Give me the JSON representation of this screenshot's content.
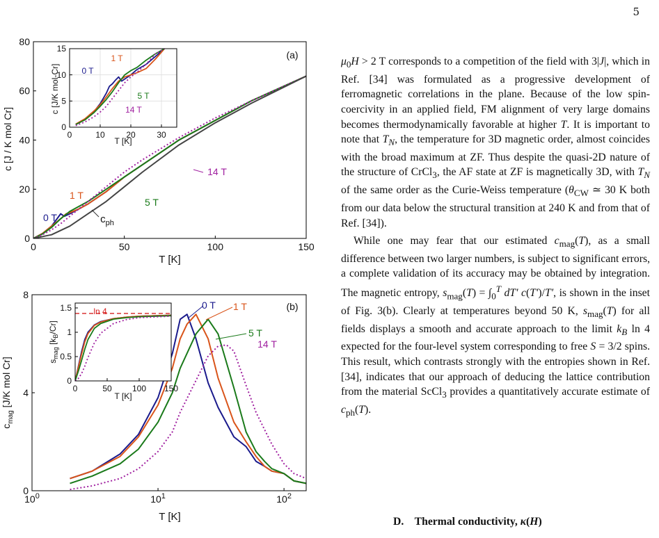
{
  "page_number": "5",
  "body_text": {
    "para1": "μ0H > 2 T corresponds to a competition of the field with 3|J|, which in Ref. [34] was formulated as a progressive development of ferromagnetic correlations in the plane. Because of the low spin-coercivity in an applied field, FM alignment of very large domains becomes thermodynamically favorable at higher T. It is important to note that TN, the temperature for 3D magnetic order, almost coincides with the broad maximum at ZF. Thus despite the quasi-2D nature of the structure of CrCl3, the AF state at ZF is magnetically 3D, with TN of the same order as the Curie-Weiss temperature (θCW ≃ 30 K both from our data below the structural transition at 240 K and from that of Ref. [34]).",
    "para2": "While one may fear that our estimated cmag(T), as a small difference between two larger numbers, is subject to significant errors, a complete validation of its accuracy may be obtained by integration. The magnetic entropy, smag(T) = ∫0T dT′ c(T′)/T′, is shown in the inset of Fig. 3(b). Clearly at temperatures beyond 50 K, smag(T) for all fields displays a smooth and accurate approach to the limit kB ln 4 expected for the four-level system corresponding to free S = 3/2 spins. This result, which contrasts strongly with the entropies shown in Ref. [34], indicates that our approach of deducing the lattice contribution from the material ScCl3 provides a quantitatively accurate estimate of cph(T)."
  },
  "section_heading": "D.   Thermal conductivity, κ(H)",
  "colors": {
    "0T": "#1a1a8c",
    "1T": "#d9541a",
    "5T": "#1a7a1a",
    "14T": "#a020a0",
    "ph": "#444444",
    "ln4": "#d62020"
  },
  "chart_data": [
    {
      "id": "a",
      "panel_label": "(a)",
      "type": "line",
      "xlabel": "T [K]",
      "ylabel": "c [J / K mol Cr]",
      "xlim": [
        0,
        150
      ],
      "ylim": [
        0,
        80
      ],
      "xticks": [
        "0",
        "50",
        "100",
        "150"
      ],
      "yticks": [
        "0",
        "20",
        "40",
        "60",
        "80"
      ],
      "grid": false,
      "series": [
        {
          "name": "0 T",
          "x": [
            0,
            5,
            10,
            13,
            15,
            17,
            20,
            25,
            30,
            40,
            50,
            60,
            80,
            100,
            120,
            150
          ],
          "y": [
            0,
            2,
            5,
            8,
            10,
            9,
            10,
            12,
            14,
            19,
            25,
            30,
            40,
            48,
            56,
            66
          ]
        },
        {
          "name": "1 T",
          "x": [
            0,
            5,
            10,
            15,
            18,
            20,
            25,
            30,
            40,
            50,
            60,
            80,
            100,
            120,
            150
          ],
          "y": [
            0,
            2,
            5,
            8,
            10,
            10.5,
            12,
            14,
            19,
            25,
            30,
            40,
            48,
            56,
            66
          ]
        },
        {
          "name": "5 T",
          "x": [
            0,
            5,
            10,
            15,
            20,
            25,
            30,
            40,
            50,
            60,
            80,
            100,
            120,
            150
          ],
          "y": [
            0,
            1.8,
            4.5,
            8,
            11,
            13,
            15,
            20,
            25,
            30,
            40,
            48,
            56,
            66
          ]
        },
        {
          "name": "14 T",
          "x": [
            0,
            5,
            10,
            15,
            20,
            25,
            30,
            40,
            50,
            60,
            80,
            100,
            120,
            150
          ],
          "y": [
            0,
            1.5,
            3.5,
            6,
            9,
            12,
            15,
            21,
            27,
            32,
            41,
            49,
            56,
            66
          ]
        },
        {
          "name": "c_ph",
          "x": [
            0,
            10,
            20,
            30,
            40,
            50,
            60,
            80,
            100,
            120,
            150
          ],
          "y": [
            0,
            1.5,
            5,
            10,
            15,
            21,
            27,
            38,
            47,
            55,
            66
          ]
        }
      ],
      "labels": {
        "0T": "0 T",
        "1T": "1 T",
        "5T": "5 T",
        "14T": "14 T",
        "ph": "c",
        "ph_sub": "ph"
      }
    },
    {
      "id": "a_inset",
      "type": "line",
      "xlabel": "T [K]",
      "ylabel": "c [J/K mol-Cr]",
      "xlim": [
        0,
        35
      ],
      "ylim": [
        0,
        15
      ],
      "xticks": [
        "0",
        "10",
        "20",
        "30"
      ],
      "yticks": [
        "0",
        "5",
        "10",
        "15"
      ],
      "grid": true,
      "series": [
        {
          "name": "0 T",
          "x": [
            2,
            5,
            8,
            10,
            12,
            13,
            14,
            15,
            16,
            17,
            18,
            20,
            22,
            25,
            28,
            31
          ],
          "y": [
            0.5,
            1.5,
            3,
            4.5,
            6.5,
            7.8,
            8.3,
            9,
            9.6,
            8.8,
            9.2,
            10,
            11,
            12,
            13.5,
            15
          ]
        },
        {
          "name": "1 T",
          "x": [
            2,
            5,
            8,
            10,
            12,
            14,
            16,
            18,
            20,
            22,
            25,
            28,
            31
          ],
          "y": [
            0.6,
            1.6,
            3.1,
            4.3,
            5.8,
            7.4,
            8.8,
            9.6,
            10,
            10.4,
            11.2,
            13,
            15
          ]
        },
        {
          "name": "5 T",
          "x": [
            2,
            5,
            8,
            10,
            12,
            14,
            16,
            18,
            20,
            22,
            25,
            28,
            31
          ],
          "y": [
            0.5,
            1.4,
            2.8,
            4,
            5.3,
            6.8,
            8.5,
            10,
            10.8,
            11.4,
            12.8,
            14,
            15
          ]
        },
        {
          "name": "14 T",
          "x": [
            2,
            5,
            8,
            10,
            12,
            14,
            16,
            18,
            20,
            22,
            25,
            28,
            31
          ],
          "y": [
            0.3,
            1,
            2,
            2.9,
            4,
            5.5,
            7,
            8.5,
            9.6,
            10.5,
            12,
            14,
            15
          ]
        }
      ],
      "labels": {
        "0T": "0 T",
        "1T": "1 T",
        "5T": "5 T",
        "14T": "14 T"
      }
    },
    {
      "id": "b",
      "panel_label": "(b)",
      "type": "line",
      "xlabel": "T [K]",
      "ylabel": "c_mag [J/K mol Cr]",
      "xscale": "log",
      "xlim": [
        1,
        150
      ],
      "ylim": [
        0,
        8
      ],
      "xticks": [
        "10^0",
        "10^1",
        "10^2"
      ],
      "yticks": [
        "0",
        "4",
        "8"
      ],
      "grid": false,
      "series": [
        {
          "name": "0 T",
          "x": [
            2,
            3,
            5,
            7,
            10,
            13,
            15,
            17,
            20,
            25,
            30,
            40,
            50,
            60,
            70,
            80,
            100,
            120,
            150
          ],
          "y": [
            0.5,
            0.8,
            1.5,
            2.3,
            3.8,
            5.6,
            7,
            7.2,
            6.2,
            4.4,
            3.4,
            2.2,
            1.8,
            1.2,
            1.0,
            0.8,
            0.7,
            0.4,
            0.3
          ]
        },
        {
          "name": "1 T",
          "x": [
            2,
            3,
            5,
            7,
            10,
            13,
            15,
            17,
            20,
            25,
            30,
            40,
            50,
            60,
            70,
            80,
            100,
            120,
            150
          ],
          "y": [
            0.5,
            0.8,
            1.4,
            2.2,
            3.5,
            5,
            6.2,
            6.8,
            7.2,
            6.2,
            4.6,
            2.8,
            2,
            1.4,
            1.0,
            0.8,
            0.7,
            0.4,
            0.3
          ]
        },
        {
          "name": "5 T",
          "x": [
            2,
            3,
            5,
            7,
            10,
            13,
            15,
            20,
            25,
            30,
            40,
            50,
            60,
            70,
            80,
            100,
            120,
            150
          ],
          "y": [
            0.3,
            0.6,
            1.1,
            1.7,
            2.8,
            4,
            5,
            6.4,
            7,
            6.4,
            4.2,
            2.4,
            1.6,
            1.2,
            0.9,
            0.7,
            0.4,
            0.3
          ]
        },
        {
          "name": "14 T",
          "x": [
            2,
            3,
            5,
            7,
            10,
            13,
            15,
            20,
            25,
            30,
            35,
            40,
            50,
            60,
            70,
            80,
            100,
            120,
            150
          ],
          "y": [
            0.05,
            0.2,
            0.5,
            0.9,
            1.6,
            2.4,
            3.2,
            4.5,
            5.5,
            5.9,
            5.95,
            5.7,
            4.3,
            3.2,
            2.5,
            1.9,
            1.1,
            0.7,
            0.5
          ]
        }
      ],
      "labels": {
        "0T": "0 T",
        "1T": "1 T",
        "5T": "5 T",
        "14T": "14 T"
      }
    },
    {
      "id": "b_inset",
      "type": "line",
      "xlabel": "T [K]",
      "ylabel": "s_mag [k_B/Cr]",
      "xlim": [
        0,
        150
      ],
      "ylim": [
        0,
        1.6
      ],
      "xticks": [
        "0",
        "50",
        "100",
        "150"
      ],
      "yticks": [
        "0",
        "0.5",
        "1",
        "1.5"
      ],
      "reference_line": {
        "label": "ln 4",
        "value": 1.386
      },
      "series": [
        {
          "name": "0 T",
          "x": [
            0,
            5,
            10,
            15,
            20,
            30,
            40,
            60,
            80,
            100,
            150
          ],
          "y": [
            0,
            0.3,
            0.6,
            0.85,
            1.0,
            1.15,
            1.22,
            1.28,
            1.31,
            1.33,
            1.35
          ]
        },
        {
          "name": "1 T",
          "x": [
            0,
            5,
            10,
            15,
            20,
            30,
            40,
            60,
            80,
            100,
            150
          ],
          "y": [
            0,
            0.28,
            0.55,
            0.8,
            0.97,
            1.14,
            1.21,
            1.28,
            1.31,
            1.33,
            1.35
          ]
        },
        {
          "name": "5 T",
          "x": [
            0,
            5,
            10,
            15,
            20,
            30,
            40,
            60,
            80,
            100,
            150
          ],
          "y": [
            0,
            0.2,
            0.42,
            0.65,
            0.85,
            1.08,
            1.18,
            1.27,
            1.3,
            1.32,
            1.34
          ]
        },
        {
          "name": "14 T",
          "x": [
            0,
            5,
            10,
            15,
            20,
            30,
            40,
            60,
            80,
            100,
            150
          ],
          "y": [
            0,
            0.05,
            0.15,
            0.3,
            0.48,
            0.78,
            0.98,
            1.18,
            1.26,
            1.3,
            1.33
          ]
        }
      ]
    }
  ]
}
